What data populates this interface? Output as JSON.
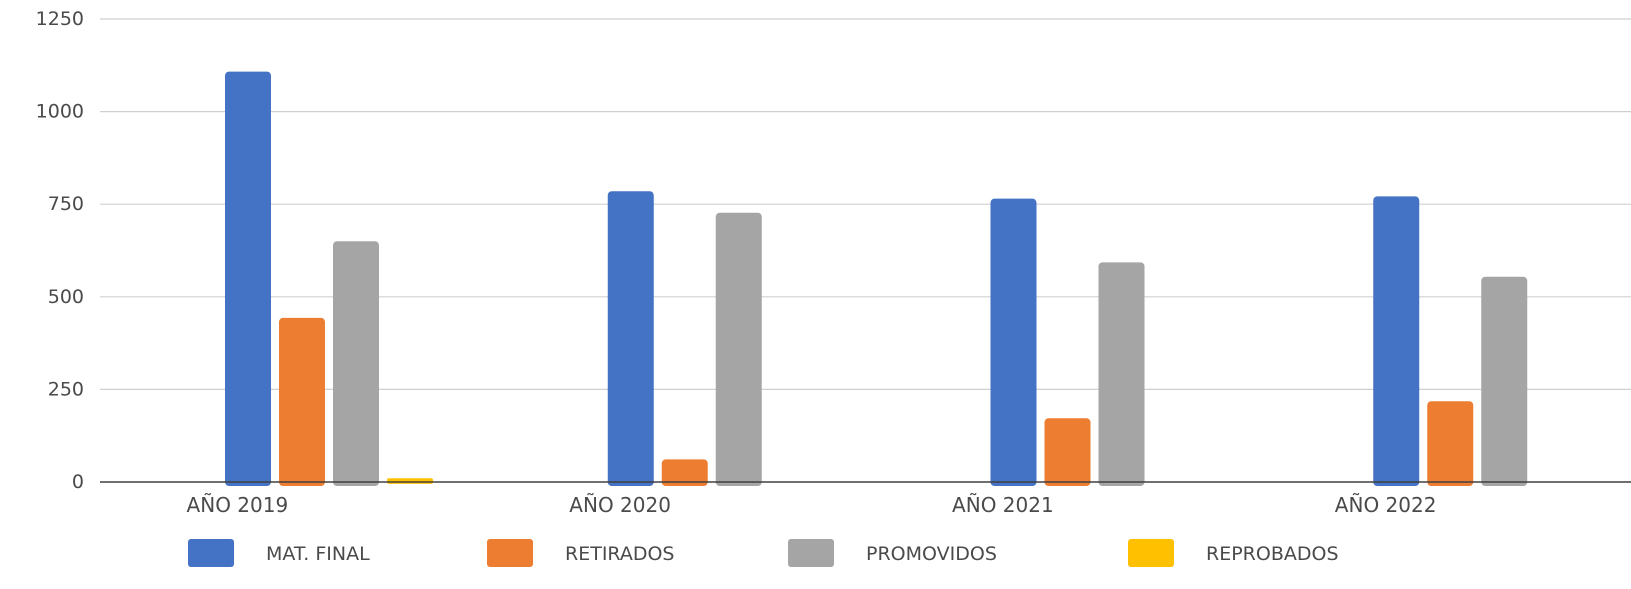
{
  "chart_data": {
    "type": "bar",
    "title": "",
    "xlabel": "",
    "ylabel": "",
    "categories": [
      "AÑO 2019",
      "AÑO 2020",
      "AÑO 2021",
      "AÑO 2022"
    ],
    "series": [
      {
        "name": "MAT. FINAL",
        "color": "#4472C4",
        "values": [
          1108,
          785,
          765,
          771
        ]
      },
      {
        "name": "RETIRADOS",
        "color": "#ED7D31",
        "values": [
          443,
          61,
          172,
          218
        ]
      },
      {
        "name": "PROMOVIDOS",
        "color": "#A5A5A5",
        "values": [
          650,
          727,
          593,
          554
        ]
      },
      {
        "name": "REPROBADOS",
        "color": "#FFC000",
        "values": [
          10,
          0,
          0,
          0
        ]
      }
    ],
    "ylim": [
      0,
      1250
    ],
    "yticks": [
      0,
      250,
      500,
      750,
      1000,
      1250
    ],
    "grid": true,
    "legend_position": "bottom"
  }
}
